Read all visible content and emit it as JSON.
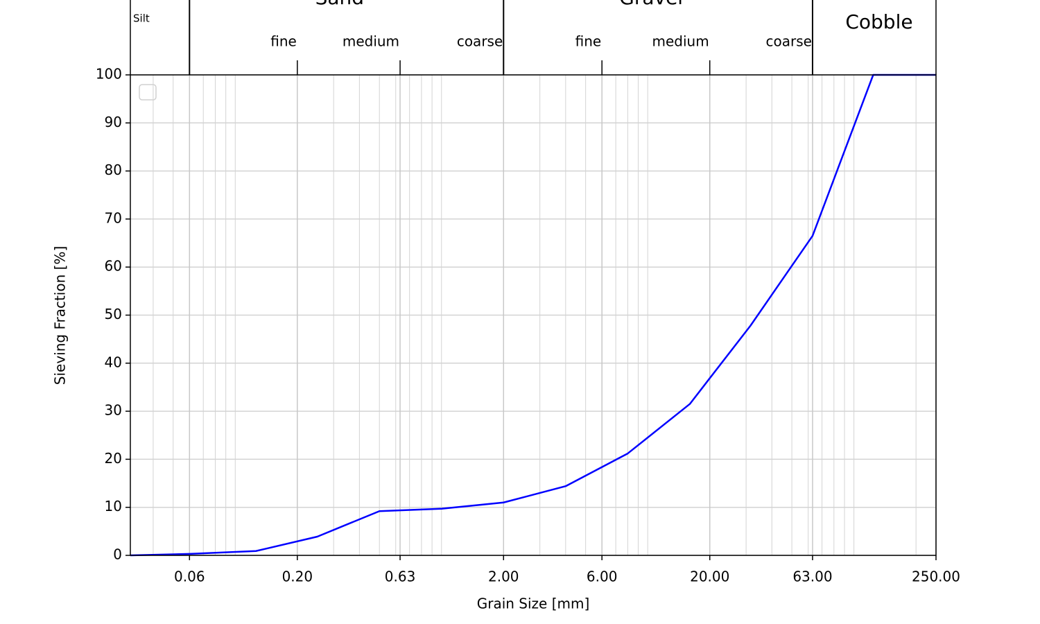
{
  "chart_data": {
    "type": "line",
    "xlabel": "Grain Size [mm]",
    "ylabel": "Sieving Fraction [%]",
    "x": [
      0.031,
      0.06,
      0.126,
      0.25,
      0.5,
      1.0,
      2.0,
      4.0,
      8.0,
      16,
      31.5,
      63,
      124,
      250
    ],
    "series": [
      {
        "color": "#0000ff",
        "values": [
          0,
          0.3,
          0.9,
          3.9,
          9.2,
          9.7,
          11.0,
          14.4,
          21.2,
          31.5,
          47.8,
          66.5,
          100,
          100
        ]
      }
    ],
    "xscale": "log",
    "xlim": [
      0.031,
      250
    ],
    "ylim": [
      0,
      100
    ],
    "xticks": [
      {
        "value": 0.06,
        "label": "0.06"
      },
      {
        "value": 0.2,
        "label": "0.20"
      },
      {
        "value": 0.63,
        "label": "0.63"
      },
      {
        "value": 2,
        "label": "2.00"
      },
      {
        "value": 6,
        "label": "6.00"
      },
      {
        "value": 20,
        "label": "20.00"
      },
      {
        "value": 63,
        "label": "63.00"
      },
      {
        "value": 250,
        "label": "250.00"
      }
    ],
    "xminorticks": [
      0.04,
      0.05,
      0.07,
      0.08,
      0.09,
      0.1,
      0.3,
      0.4,
      0.5,
      0.6,
      0.7,
      0.8,
      0.9,
      1,
      3,
      4,
      5,
      7,
      8,
      9,
      10,
      30,
      40,
      50,
      60,
      70,
      80,
      90,
      100,
      200
    ],
    "yticks": [
      0,
      10,
      20,
      30,
      40,
      50,
      60,
      70,
      80,
      90,
      100
    ],
    "grid": true,
    "zones": [
      {
        "label": "Silt",
        "end": 0.06
      },
      {
        "label": "Sand",
        "start": 0.06,
        "end": 2,
        "subdivisions": [
          {
            "label": "fine",
            "end": 0.2
          },
          {
            "label": "medium",
            "end": 0.63
          },
          {
            "label": "coarse",
            "end": 2
          }
        ]
      },
      {
        "label": "Gravel",
        "start": 2,
        "end": 63,
        "subdivisions": [
          {
            "label": "fine",
            "end": 6
          },
          {
            "label": "medium",
            "end": 20
          },
          {
            "label": "coarse",
            "end": 63
          }
        ]
      },
      {
        "label": "Cobble",
        "start": 63
      }
    ]
  }
}
